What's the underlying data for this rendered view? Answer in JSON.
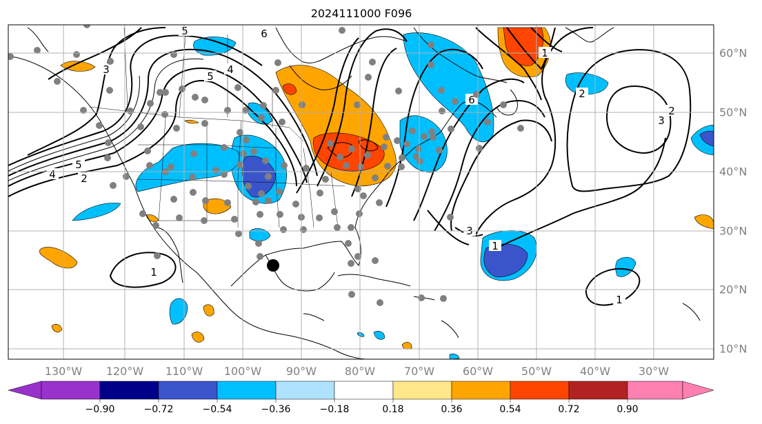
{
  "title": "2024111000 F096",
  "map": {
    "longitude_labels": [
      "130°W",
      "120°W",
      "110°W",
      "100°W",
      "90°W",
      "80°W",
      "70°W",
      "60°W",
      "50°W",
      "40°W",
      "30°W"
    ],
    "latitude_labels": [
      "60°N",
      "50°N",
      "40°N",
      "30°N",
      "20°N",
      "10°N"
    ],
    "contour_labels": [
      "5",
      "6",
      "3",
      "5",
      "4",
      "5",
      "4",
      "2",
      "6",
      "2",
      "3",
      "3",
      "1",
      "1",
      "1",
      "2",
      "1"
    ],
    "marker_colors": {
      "station": "#808080",
      "storm": "#000000"
    }
  },
  "colorbar": {
    "ticks": [
      "−0.90",
      "−0.72",
      "−0.54",
      "−0.36",
      "−0.18",
      "0.18",
      "0.36",
      "0.54",
      "0.72",
      "0.90"
    ],
    "colors": [
      "#9932cc",
      "#00008b",
      "#3a55cc",
      "#00bfff",
      "#aee2ff",
      "#ffffff",
      "#ffe78a",
      "#ffa500",
      "#ff4500",
      "#b22222",
      "#ff80b0"
    ]
  }
}
